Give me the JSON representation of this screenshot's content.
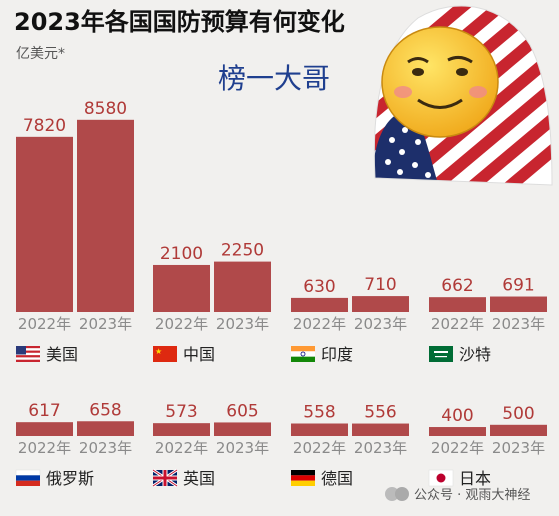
{
  "title": "2023年各国国防预算有何变化",
  "unit": "亿美元*",
  "slogan": "榜一大哥",
  "watermark": "公众号 · 观雨大神经",
  "colors": {
    "bar": "#b0494a",
    "value_text": "#b03a38",
    "year_text": "#8a8a8a"
  },
  "chart_data": {
    "type": "bar",
    "title": "2023年各国国防预算有何变化",
    "ylabel": "亿美元*",
    "categories": [
      "2022年",
      "2023年"
    ],
    "series": [
      {
        "name": "美国",
        "flag": "us-flag",
        "values": [
          7820,
          8580
        ]
      },
      {
        "name": "中国",
        "flag": "china-flag",
        "values": [
          2100,
          2250
        ]
      },
      {
        "name": "印度",
        "flag": "india-flag",
        "values": [
          630,
          710
        ]
      },
      {
        "name": "沙特",
        "flag": "saudi-flag",
        "values": [
          662,
          691
        ]
      },
      {
        "name": "俄罗斯",
        "flag": "russia-flag",
        "values": [
          617,
          658
        ]
      },
      {
        "name": "英国",
        "flag": "uk-flag",
        "values": [
          573,
          605
        ]
      },
      {
        "name": "德国",
        "flag": "germany-flag",
        "values": [
          558,
          556
        ]
      },
      {
        "name": "日本",
        "flag": "japan-flag",
        "values": [
          400,
          500
        ]
      }
    ]
  }
}
